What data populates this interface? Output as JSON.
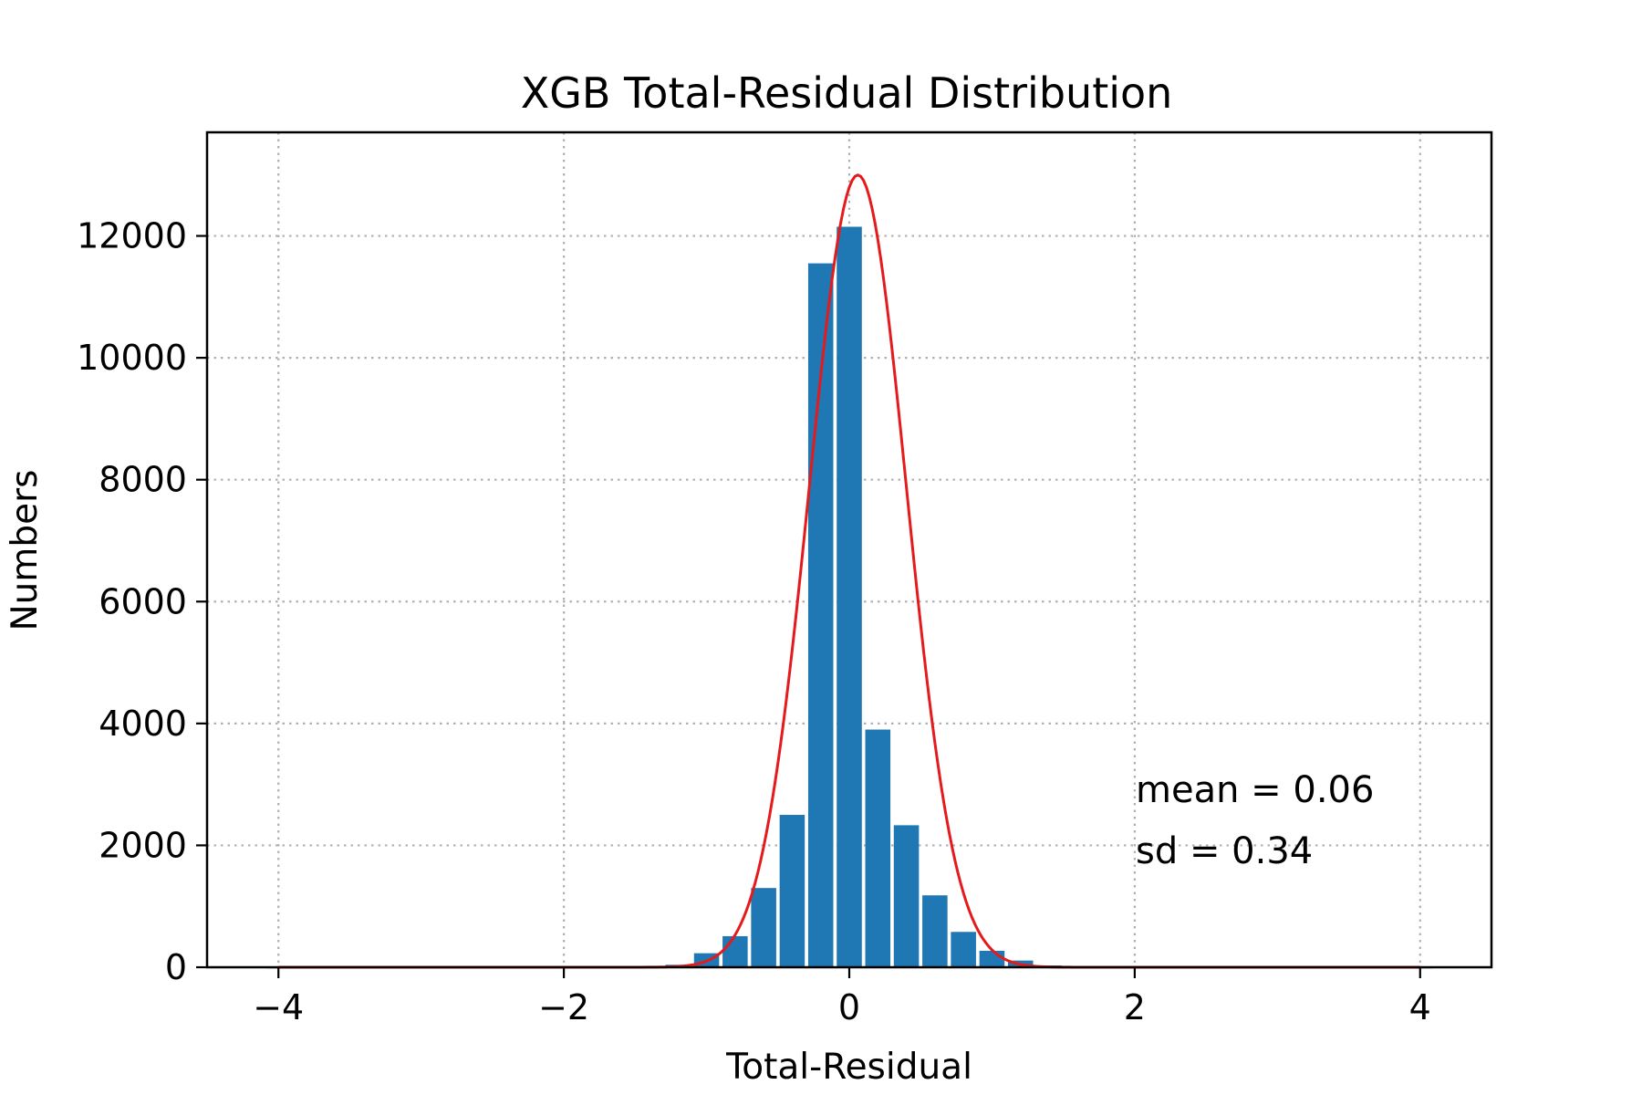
{
  "chart_data": {
    "type": "bar",
    "title": "XGB Total-Residual Distribution",
    "xlabel": "Total-Residual",
    "ylabel": "Numbers",
    "xlim": [
      -4.5,
      4.5
    ],
    "ylim": [
      0,
      13700
    ],
    "grid": true,
    "x_ticks": [
      -4,
      -2,
      0,
      2,
      4
    ],
    "x_tick_labels": [
      "−4",
      "−2",
      "0",
      "2",
      "4"
    ],
    "y_ticks": [
      0,
      2000,
      4000,
      6000,
      8000,
      10000,
      12000
    ],
    "y_tick_labels": [
      "0",
      "2000",
      "4000",
      "6000",
      "8000",
      "10000",
      "12000"
    ],
    "bar_color": "#1f77b4",
    "bin_width": 0.2,
    "bins": [
      {
        "x": -4.0,
        "count": 0
      },
      {
        "x": -3.8,
        "count": 0
      },
      {
        "x": -3.6,
        "count": 0
      },
      {
        "x": -3.4,
        "count": 0
      },
      {
        "x": -3.2,
        "count": 0
      },
      {
        "x": -3.0,
        "count": 0
      },
      {
        "x": -2.8,
        "count": 0
      },
      {
        "x": -2.6,
        "count": 0
      },
      {
        "x": -2.4,
        "count": 0
      },
      {
        "x": -2.2,
        "count": 0
      },
      {
        "x": -2.0,
        "count": 0
      },
      {
        "x": -1.8,
        "count": 0
      },
      {
        "x": -1.6,
        "count": 0
      },
      {
        "x": -1.4,
        "count": 5
      },
      {
        "x": -1.2,
        "count": 40
      },
      {
        "x": -1.0,
        "count": 230
      },
      {
        "x": -0.8,
        "count": 510
      },
      {
        "x": -0.6,
        "count": 1300
      },
      {
        "x": -0.4,
        "count": 2500
      },
      {
        "x": -0.2,
        "count": 11550
      },
      {
        "x": 0.0,
        "count": 12150
      },
      {
        "x": 0.2,
        "count": 3900
      },
      {
        "x": 0.4,
        "count": 2330
      },
      {
        "x": 0.6,
        "count": 1180
      },
      {
        "x": 0.8,
        "count": 580
      },
      {
        "x": 1.0,
        "count": 270
      },
      {
        "x": 1.2,
        "count": 110
      },
      {
        "x": 1.4,
        "count": 30
      },
      {
        "x": 1.6,
        "count": 8
      },
      {
        "x": 1.8,
        "count": 0
      },
      {
        "x": 2.0,
        "count": 0
      },
      {
        "x": 2.2,
        "count": 0
      },
      {
        "x": 2.4,
        "count": 0
      },
      {
        "x": 2.6,
        "count": 0
      },
      {
        "x": 2.8,
        "count": 0
      },
      {
        "x": 3.0,
        "count": 0
      },
      {
        "x": 3.2,
        "count": 0
      },
      {
        "x": 3.4,
        "count": 0
      },
      {
        "x": 3.6,
        "count": 0
      },
      {
        "x": 3.8,
        "count": 0
      },
      {
        "x": 4.0,
        "count": 0
      }
    ],
    "fit_curve": {
      "color": "#e41a1c",
      "mean": 0.06,
      "sd": 0.34,
      "peak": 13000,
      "x_range": [
        -4,
        4
      ]
    },
    "annotations": {
      "mean_text": "mean = 0.06",
      "sd_text": "sd = 0.34"
    }
  }
}
